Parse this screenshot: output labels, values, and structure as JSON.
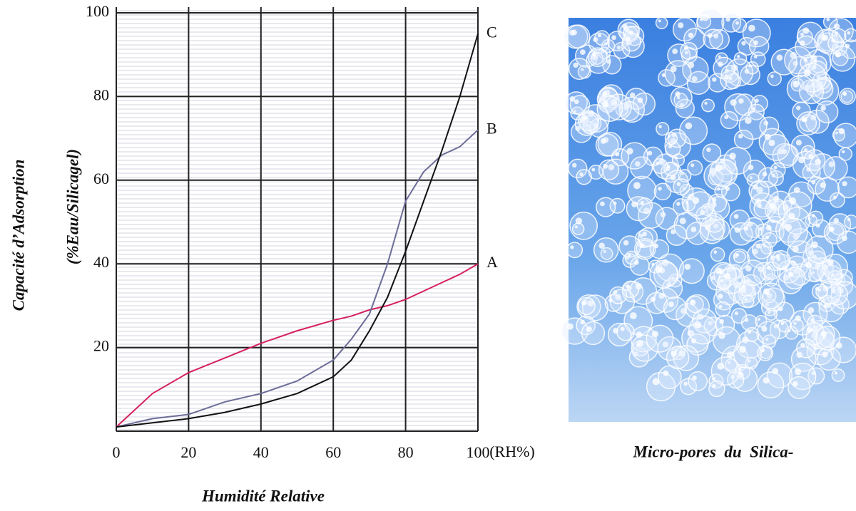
{
  "chart_data": {
    "type": "line",
    "y_axis_title": "Capacité d’Adsorption",
    "y_axis_subtitle": "(%Eau/Silicagel)",
    "x_axis_title": "Humidité Relative",
    "x_unit_label": "(RH%)",
    "image_caption": "Micro-pores  du  Silica-",
    "x": [
      0,
      10,
      20,
      30,
      40,
      50,
      60,
      65,
      70,
      75,
      80,
      85,
      90,
      95,
      100
    ],
    "series": [
      {
        "name": "A",
        "color": "#d6205e",
        "values": [
          1,
          9,
          14,
          17.5,
          21,
          24,
          26.5,
          27.5,
          29,
          30,
          31.5,
          33.5,
          35.5,
          37.5,
          40
        ]
      },
      {
        "name": "B",
        "color": "#6c6c98",
        "values": [
          1,
          3,
          4,
          7,
          9,
          12,
          17,
          22,
          28,
          40,
          55,
          62,
          66,
          68,
          72
        ]
      },
      {
        "name": "C",
        "color": "#111111",
        "values": [
          1,
          2,
          3,
          4.5,
          6.5,
          9,
          13,
          17,
          24,
          32,
          43,
          55,
          67,
          80,
          95
        ]
      }
    ],
    "xlim": [
      0,
      100
    ],
    "ylim": [
      0,
      100
    ],
    "xticks": [
      0,
      20,
      40,
      60,
      80,
      100
    ],
    "yticks": [
      20,
      40,
      60,
      80,
      100
    ],
    "grid": true
  }
}
